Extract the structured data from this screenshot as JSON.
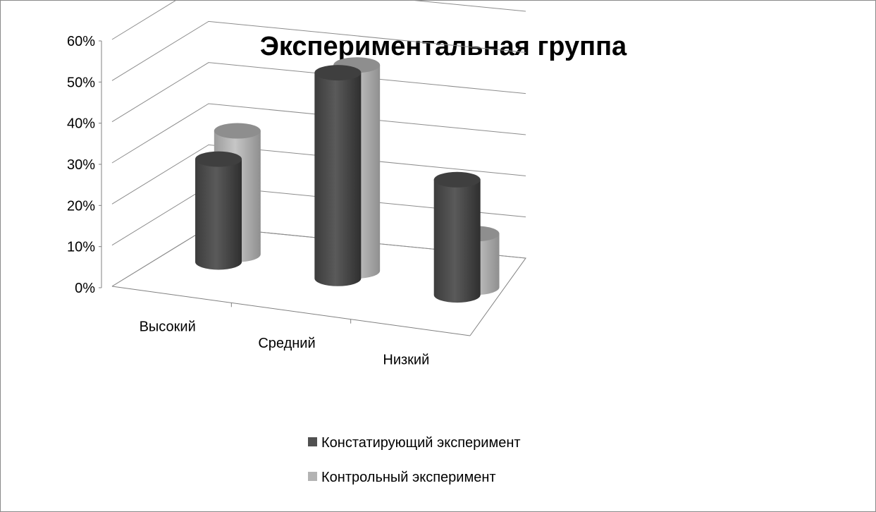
{
  "chart_data": {
    "type": "bar",
    "style": "3d-cylinder",
    "title": "Экспериментальная группа",
    "categories": [
      "Высокий",
      "Средний",
      "Низкий"
    ],
    "series": [
      {
        "name": "Констатирующий эксперимент",
        "color": "#505050",
        "values": [
          25,
          50,
          28
        ]
      },
      {
        "name": "Контрольный эксперимент",
        "color": "#b3b3b3",
        "values": [
          30,
          50,
          13
        ]
      }
    ],
    "yticks": [
      "0%",
      "10%",
      "20%",
      "30%",
      "40%",
      "50%",
      "60%"
    ],
    "ylim": [
      0,
      60
    ],
    "grid": true,
    "legend_position": "bottom"
  }
}
